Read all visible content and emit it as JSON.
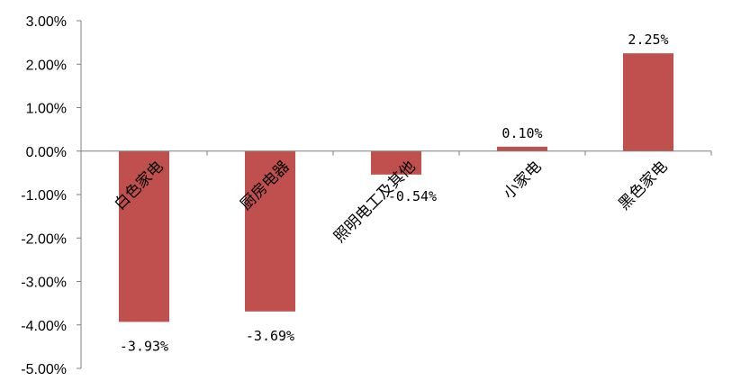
{
  "chart_data": {
    "type": "bar",
    "categories": [
      "白色家电",
      "厨房电器",
      "照明电工及其他",
      "小家电",
      "黑色家电"
    ],
    "values": [
      -3.93,
      -3.69,
      -0.54,
      0.1,
      2.25
    ],
    "data_labels": [
      "-3.93%",
      "-3.69%",
      "-0.54%",
      "0.10%",
      "2.25%"
    ],
    "ylim": [
      -5,
      3
    ],
    "y_ticks": [
      3,
      2,
      1,
      0,
      -1,
      -2,
      -3,
      -4,
      -5
    ],
    "y_tick_labels": [
      "3.00%",
      "2.00%",
      "1.00%",
      "0.00%",
      "-1.00%",
      "-2.00%",
      "-3.00%",
      "-4.00%",
      "-5.00%"
    ],
    "title": "",
    "xlabel": "",
    "ylabel": "",
    "grid": false,
    "bar_color": "#C0504D"
  }
}
